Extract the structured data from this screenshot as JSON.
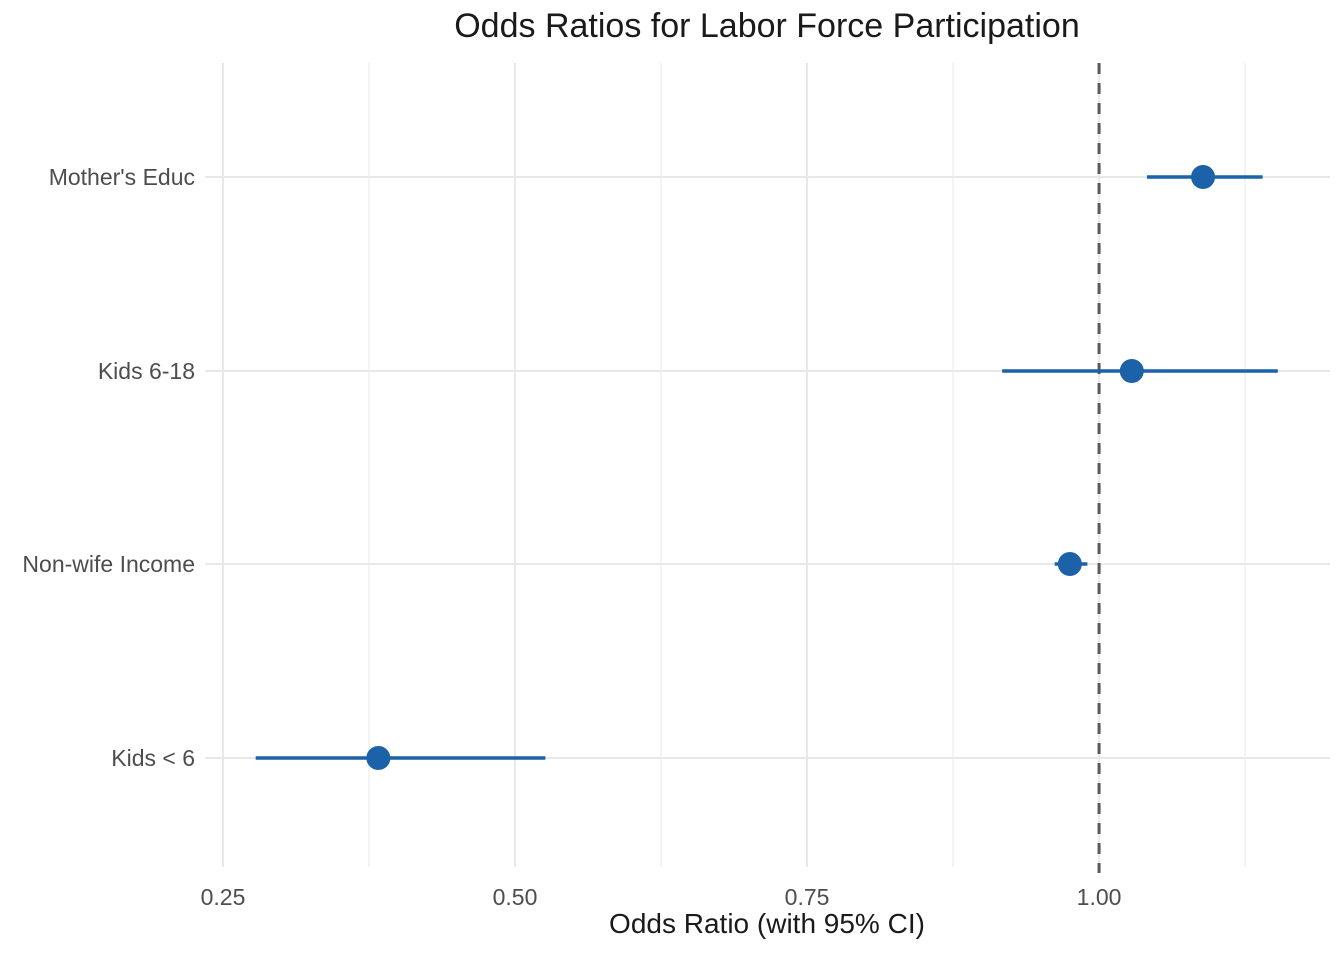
{
  "page": {
    "background": "#FFFFFF"
  },
  "chart_data": {
    "type": "scatter",
    "subtype": "forest-plot-dot-with-ci",
    "title": "Odds Ratios for Labor Force Participation",
    "xlabel": "Odds Ratio (with 95% CI)",
    "ylabel": "",
    "categories": [
      "Mother's Educ",
      "Kids 6-18",
      "Non-wife Income",
      "Kids < 6"
    ],
    "series": [
      {
        "name": "odds_ratios",
        "points": [
          {
            "category": "Mother's Educ",
            "or": 1.089,
            "ci_low": 1.041,
            "ci_high": 1.14
          },
          {
            "category": "Kids 6-18",
            "or": 1.028,
            "ci_low": 0.917,
            "ci_high": 1.153
          },
          {
            "category": "Non-wife Income",
            "or": 0.975,
            "ci_low": 0.962,
            "ci_high": 0.99
          },
          {
            "category": "Kids < 6",
            "or": 0.383,
            "ci_low": 0.278,
            "ci_high": 0.526
          }
        ]
      }
    ],
    "x_ticks": [
      {
        "value": 0.25,
        "label": "0.25"
      },
      {
        "value": 0.5,
        "label": "0.50"
      },
      {
        "value": 0.75,
        "label": "0.75"
      },
      {
        "value": 1.0,
        "label": "1.00"
      }
    ],
    "x_minor": [
      0.375,
      0.625,
      0.875,
      1.125
    ],
    "xlim": [
      0.2346,
      1.1977
    ],
    "reference_line": {
      "value": 1.0,
      "style": "dashed",
      "color": "#595959"
    },
    "grid": true,
    "legend": "none",
    "colors": {
      "point": "#1C62A8",
      "ci": "#1C62A8",
      "grid": "#E8E8E8",
      "grid_minor": "#ECECEC",
      "axis_text": "#4D4D4D",
      "title_text": "#1A1A1A"
    }
  }
}
